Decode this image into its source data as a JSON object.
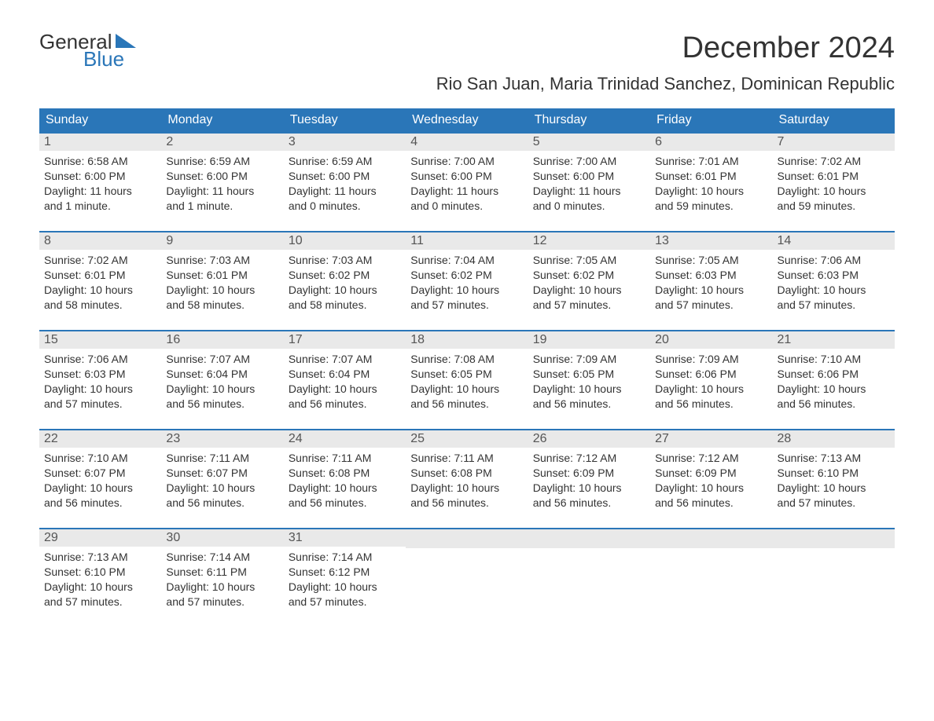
{
  "logo": {
    "general": "General",
    "blue": "Blue",
    "flag_color": "#2a76b8"
  },
  "title": "December 2024",
  "subtitle": "Rio San Juan, Maria Trinidad Sanchez, Dominican Republic",
  "colors": {
    "header_bg": "#2a76b8",
    "header_text": "#ffffff",
    "daynum_bg": "#e9e9e9",
    "daynum_text": "#555555",
    "body_text": "#333333",
    "week_border": "#2a76b8",
    "page_bg": "#ffffff"
  },
  "fonts": {
    "title_size": 38,
    "subtitle_size": 22,
    "dow_size": 16,
    "daynum_size": 16,
    "body_size": 14
  },
  "dow": [
    "Sunday",
    "Monday",
    "Tuesday",
    "Wednesday",
    "Thursday",
    "Friday",
    "Saturday"
  ],
  "weeks": [
    [
      {
        "n": "1",
        "sunrise": "Sunrise: 6:58 AM",
        "sunset": "Sunset: 6:00 PM",
        "d1": "Daylight: 11 hours",
        "d2": "and 1 minute."
      },
      {
        "n": "2",
        "sunrise": "Sunrise: 6:59 AM",
        "sunset": "Sunset: 6:00 PM",
        "d1": "Daylight: 11 hours",
        "d2": "and 1 minute."
      },
      {
        "n": "3",
        "sunrise": "Sunrise: 6:59 AM",
        "sunset": "Sunset: 6:00 PM",
        "d1": "Daylight: 11 hours",
        "d2": "and 0 minutes."
      },
      {
        "n": "4",
        "sunrise": "Sunrise: 7:00 AM",
        "sunset": "Sunset: 6:00 PM",
        "d1": "Daylight: 11 hours",
        "d2": "and 0 minutes."
      },
      {
        "n": "5",
        "sunrise": "Sunrise: 7:00 AM",
        "sunset": "Sunset: 6:00 PM",
        "d1": "Daylight: 11 hours",
        "d2": "and 0 minutes."
      },
      {
        "n": "6",
        "sunrise": "Sunrise: 7:01 AM",
        "sunset": "Sunset: 6:01 PM",
        "d1": "Daylight: 10 hours",
        "d2": "and 59 minutes."
      },
      {
        "n": "7",
        "sunrise": "Sunrise: 7:02 AM",
        "sunset": "Sunset: 6:01 PM",
        "d1": "Daylight: 10 hours",
        "d2": "and 59 minutes."
      }
    ],
    [
      {
        "n": "8",
        "sunrise": "Sunrise: 7:02 AM",
        "sunset": "Sunset: 6:01 PM",
        "d1": "Daylight: 10 hours",
        "d2": "and 58 minutes."
      },
      {
        "n": "9",
        "sunrise": "Sunrise: 7:03 AM",
        "sunset": "Sunset: 6:01 PM",
        "d1": "Daylight: 10 hours",
        "d2": "and 58 minutes."
      },
      {
        "n": "10",
        "sunrise": "Sunrise: 7:03 AM",
        "sunset": "Sunset: 6:02 PM",
        "d1": "Daylight: 10 hours",
        "d2": "and 58 minutes."
      },
      {
        "n": "11",
        "sunrise": "Sunrise: 7:04 AM",
        "sunset": "Sunset: 6:02 PM",
        "d1": "Daylight: 10 hours",
        "d2": "and 57 minutes."
      },
      {
        "n": "12",
        "sunrise": "Sunrise: 7:05 AM",
        "sunset": "Sunset: 6:02 PM",
        "d1": "Daylight: 10 hours",
        "d2": "and 57 minutes."
      },
      {
        "n": "13",
        "sunrise": "Sunrise: 7:05 AM",
        "sunset": "Sunset: 6:03 PM",
        "d1": "Daylight: 10 hours",
        "d2": "and 57 minutes."
      },
      {
        "n": "14",
        "sunrise": "Sunrise: 7:06 AM",
        "sunset": "Sunset: 6:03 PM",
        "d1": "Daylight: 10 hours",
        "d2": "and 57 minutes."
      }
    ],
    [
      {
        "n": "15",
        "sunrise": "Sunrise: 7:06 AM",
        "sunset": "Sunset: 6:03 PM",
        "d1": "Daylight: 10 hours",
        "d2": "and 57 minutes."
      },
      {
        "n": "16",
        "sunrise": "Sunrise: 7:07 AM",
        "sunset": "Sunset: 6:04 PM",
        "d1": "Daylight: 10 hours",
        "d2": "and 56 minutes."
      },
      {
        "n": "17",
        "sunrise": "Sunrise: 7:07 AM",
        "sunset": "Sunset: 6:04 PM",
        "d1": "Daylight: 10 hours",
        "d2": "and 56 minutes."
      },
      {
        "n": "18",
        "sunrise": "Sunrise: 7:08 AM",
        "sunset": "Sunset: 6:05 PM",
        "d1": "Daylight: 10 hours",
        "d2": "and 56 minutes."
      },
      {
        "n": "19",
        "sunrise": "Sunrise: 7:09 AM",
        "sunset": "Sunset: 6:05 PM",
        "d1": "Daylight: 10 hours",
        "d2": "and 56 minutes."
      },
      {
        "n": "20",
        "sunrise": "Sunrise: 7:09 AM",
        "sunset": "Sunset: 6:06 PM",
        "d1": "Daylight: 10 hours",
        "d2": "and 56 minutes."
      },
      {
        "n": "21",
        "sunrise": "Sunrise: 7:10 AM",
        "sunset": "Sunset: 6:06 PM",
        "d1": "Daylight: 10 hours",
        "d2": "and 56 minutes."
      }
    ],
    [
      {
        "n": "22",
        "sunrise": "Sunrise: 7:10 AM",
        "sunset": "Sunset: 6:07 PM",
        "d1": "Daylight: 10 hours",
        "d2": "and 56 minutes."
      },
      {
        "n": "23",
        "sunrise": "Sunrise: 7:11 AM",
        "sunset": "Sunset: 6:07 PM",
        "d1": "Daylight: 10 hours",
        "d2": "and 56 minutes."
      },
      {
        "n": "24",
        "sunrise": "Sunrise: 7:11 AM",
        "sunset": "Sunset: 6:08 PM",
        "d1": "Daylight: 10 hours",
        "d2": "and 56 minutes."
      },
      {
        "n": "25",
        "sunrise": "Sunrise: 7:11 AM",
        "sunset": "Sunset: 6:08 PM",
        "d1": "Daylight: 10 hours",
        "d2": "and 56 minutes."
      },
      {
        "n": "26",
        "sunrise": "Sunrise: 7:12 AM",
        "sunset": "Sunset: 6:09 PM",
        "d1": "Daylight: 10 hours",
        "d2": "and 56 minutes."
      },
      {
        "n": "27",
        "sunrise": "Sunrise: 7:12 AM",
        "sunset": "Sunset: 6:09 PM",
        "d1": "Daylight: 10 hours",
        "d2": "and 56 minutes."
      },
      {
        "n": "28",
        "sunrise": "Sunrise: 7:13 AM",
        "sunset": "Sunset: 6:10 PM",
        "d1": "Daylight: 10 hours",
        "d2": "and 57 minutes."
      }
    ],
    [
      {
        "n": "29",
        "sunrise": "Sunrise: 7:13 AM",
        "sunset": "Sunset: 6:10 PM",
        "d1": "Daylight: 10 hours",
        "d2": "and 57 minutes."
      },
      {
        "n": "30",
        "sunrise": "Sunrise: 7:14 AM",
        "sunset": "Sunset: 6:11 PM",
        "d1": "Daylight: 10 hours",
        "d2": "and 57 minutes."
      },
      {
        "n": "31",
        "sunrise": "Sunrise: 7:14 AM",
        "sunset": "Sunset: 6:12 PM",
        "d1": "Daylight: 10 hours",
        "d2": "and 57 minutes."
      },
      null,
      null,
      null,
      null
    ]
  ]
}
